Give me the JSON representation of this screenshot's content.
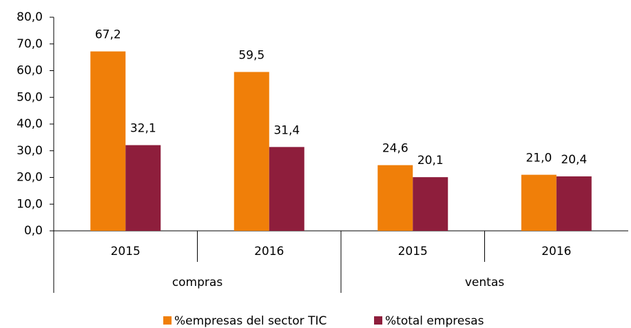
{
  "chart_data": {
    "type": "bar",
    "groups": [
      {
        "name": "compras",
        "categories": [
          "2015",
          "2016"
        ]
      },
      {
        "name": "ventas",
        "categories": [
          "2015",
          "2016"
        ]
      }
    ],
    "series": [
      {
        "name": "%empresas del sector TIC",
        "color": "#f07f09",
        "values": [
          67.2,
          59.5,
          24.6,
          21.0
        ],
        "value_labels": [
          "67,2",
          "59,5",
          "24,6",
          "21,0"
        ]
      },
      {
        "name": "%total empresas",
        "color": "#8e1e3c",
        "values": [
          32.1,
          31.4,
          20.1,
          20.4
        ],
        "value_labels": [
          "32,1",
          "31,4",
          "20,1",
          "20,4"
        ]
      }
    ],
    "ylim": [
      0,
      80
    ],
    "yticks": [
      {
        "value": 0,
        "label": "0,0"
      },
      {
        "value": 10,
        "label": "10,0"
      },
      {
        "value": 20,
        "label": "20,0"
      },
      {
        "value": 30,
        "label": "30,0"
      },
      {
        "value": 40,
        "label": "40,0"
      },
      {
        "value": 50,
        "label": "50,0"
      },
      {
        "value": 60,
        "label": "60,0"
      },
      {
        "value": 70,
        "label": "70,0"
      },
      {
        "value": 80,
        "label": "80,0"
      }
    ],
    "grid": false,
    "legend": "bottom"
  }
}
